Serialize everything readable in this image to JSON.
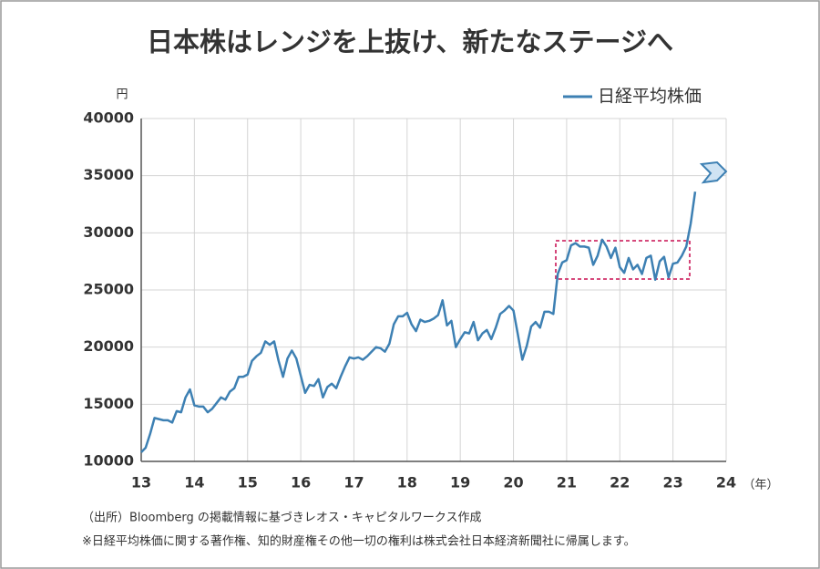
{
  "chart_data": {
    "type": "line",
    "title": "日本株はレンジを上抜け、新たなステージへ",
    "y_unit": "円",
    "x_unit": "（年）",
    "source": "（出所）Bloomberg の掲載情報に基づきレオス・キャピタルワークス作成",
    "note": "※日経平均株価に関する著作権、知的財産権その他一切の権利は株式会社日本経済新聞社に帰属します。",
    "xlim": [
      13,
      24
    ],
    "xticks": [
      13,
      14,
      15,
      16,
      17,
      18,
      19,
      20,
      21,
      22,
      23,
      24
    ],
    "ylim": [
      10000,
      40000
    ],
    "yticks": [
      10000,
      15000,
      20000,
      25000,
      30000,
      35000,
      40000
    ],
    "grid": true,
    "legend": "top-right",
    "x": [
      13.0,
      13.083,
      13.167,
      13.25,
      13.333,
      13.417,
      13.5,
      13.583,
      13.667,
      13.75,
      13.833,
      13.917,
      14.0,
      14.083,
      14.167,
      14.25,
      14.333,
      14.417,
      14.5,
      14.583,
      14.667,
      14.75,
      14.833,
      14.917,
      15.0,
      15.083,
      15.167,
      15.25,
      15.333,
      15.417,
      15.5,
      15.583,
      15.667,
      15.75,
      15.833,
      15.917,
      16.0,
      16.083,
      16.167,
      16.25,
      16.333,
      16.417,
      16.5,
      16.583,
      16.667,
      16.75,
      16.833,
      16.917,
      17.0,
      17.083,
      17.167,
      17.25,
      17.333,
      17.417,
      17.5,
      17.583,
      17.667,
      17.75,
      17.833,
      17.917,
      18.0,
      18.083,
      18.167,
      18.25,
      18.333,
      18.417,
      18.5,
      18.583,
      18.667,
      18.75,
      18.833,
      18.917,
      19.0,
      19.083,
      19.167,
      19.25,
      19.333,
      19.417,
      19.5,
      19.583,
      19.667,
      19.75,
      19.833,
      19.917,
      20.0,
      20.083,
      20.167,
      20.25,
      20.333,
      20.417,
      20.5,
      20.583,
      20.667,
      20.75,
      20.833,
      20.917,
      21.0,
      21.083,
      21.167,
      21.25,
      21.333,
      21.417,
      21.5,
      21.583,
      21.667,
      21.75,
      21.833,
      21.917,
      22.0,
      22.083,
      22.167,
      22.25,
      22.333,
      22.417,
      22.5,
      22.583,
      22.667,
      22.75,
      22.833,
      22.917,
      23.0,
      23.083,
      23.167,
      23.25,
      23.333,
      23.417
    ],
    "series": [
      {
        "name": "日経平均株価",
        "color": "#3d80b3",
        "values": [
          10800,
          11200,
          12400,
          13800,
          13700,
          13600,
          13600,
          13400,
          14400,
          14300,
          15600,
          16300,
          14900,
          14800,
          14800,
          14300,
          14600,
          15100,
          15600,
          15400,
          16100,
          16400,
          17400,
          17400,
          17600,
          18800,
          19200,
          19500,
          20500,
          20200,
          20500,
          18800,
          17400,
          19000,
          19700,
          19000,
          17500,
          16000,
          16700,
          16600,
          17200,
          15600,
          16500,
          16800,
          16400,
          17400,
          18300,
          19100,
          19000,
          19100,
          18900,
          19200,
          19600,
          20000,
          19900,
          19600,
          20300,
          22000,
          22700,
          22700,
          23000,
          22000,
          21400,
          22400,
          22200,
          22300,
          22500,
          22800,
          24100,
          21900,
          22300,
          20000,
          20700,
          21300,
          21200,
          22200,
          20600,
          21200,
          21500,
          20700,
          21700,
          22900,
          23200,
          23600,
          23200,
          21100,
          18900,
          20100,
          21800,
          22200,
          21700,
          23100,
          23100,
          22900,
          26400,
          27400,
          27600,
          28900,
          29100,
          28800,
          28800,
          28700,
          27200,
          28000,
          29400,
          28800,
          27800,
          28700,
          27000,
          26500,
          27800,
          26800,
          27200,
          26400,
          27800,
          28000,
          25900,
          27500,
          27900,
          26100,
          27300,
          27400,
          28000,
          28800,
          30800,
          33600
        ]
      }
    ]
  }
}
